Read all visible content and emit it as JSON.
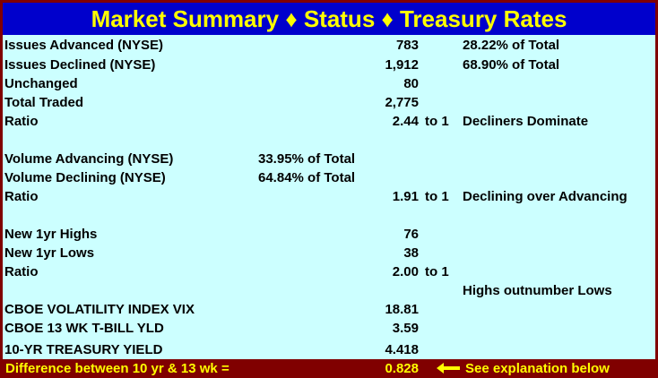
{
  "title": "Market Summary ♦ Status ♦ Treasury Rates",
  "rows": [
    {
      "label": "Issues Advanced (NYSE)",
      "value": "783",
      "note": "28.22% of Total"
    },
    {
      "label": "Issues Declined (NYSE)",
      "value": "1,912",
      "note": "68.90% of Total"
    },
    {
      "label": "Unchanged",
      "value": "80"
    },
    {
      "label": "Total Traded",
      "value": "2,775"
    },
    {
      "label": "Ratio",
      "value": "2.44",
      "unit": "to 1",
      "note": "Decliners Dominate"
    },
    {
      "label": "Volume Advancing (NYSE)",
      "pct": "33.95% of Total"
    },
    {
      "label": "Volume Declining (NYSE)",
      "pct": "64.84% of Total"
    },
    {
      "label": "Ratio",
      "value": "1.91",
      "unit": "to 1",
      "note": "Declining over Advancing"
    },
    {
      "label": "New 1yr Highs",
      "value": "76"
    },
    {
      "label": "New 1yr Lows",
      "value": "38"
    },
    {
      "label": "Ratio",
      "value": "2.00",
      "unit": "to 1"
    },
    {
      "note": "Highs outnumber Lows"
    },
    {
      "label": "CBOE VOLATILITY INDEX VIX",
      "value": "18.81"
    },
    {
      "label": "CBOE 13 WK T-BILL YLD",
      "value": "3.59"
    },
    {
      "label": "10-YR TREASURY YIELD",
      "value": "4.418"
    }
  ],
  "footer": {
    "label": "Difference between 10 yr & 13 wk =",
    "value": "0.828",
    "note": "See explanation below"
  }
}
